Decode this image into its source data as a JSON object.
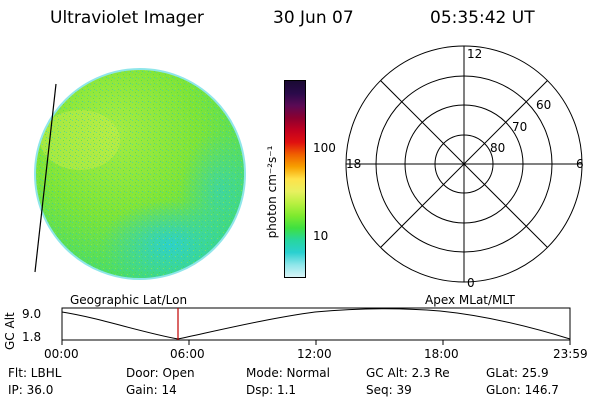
{
  "header": {
    "title": "Ultraviolet Imager",
    "date": "30 Jun 07",
    "time": "05:35:42 UT"
  },
  "colorbar": {
    "unit_label": "photon cm⁻²s⁻¹",
    "ticks": [
      "100",
      "10"
    ],
    "colors": [
      "#1a0a33",
      "#2a0a4a",
      "#5a0a55",
      "#8b0030",
      "#c00020",
      "#e01010",
      "#f06000",
      "#f7a000",
      "#ffe24a",
      "#e8f060",
      "#b8f040",
      "#7eea2e",
      "#3fe040",
      "#27d6a0",
      "#2ad0d0",
      "#8fe6ea",
      "#d8f4f6"
    ]
  },
  "polar": {
    "mlt_labels": {
      "top": "12",
      "left": "18",
      "right": "6",
      "bottom": "0"
    },
    "lat_labels": [
      "60",
      "70",
      "80"
    ]
  },
  "timeline": {
    "left_label": "Geographic Lat/Lon",
    "right_label": "Apex MLat/MLT",
    "yaxis_label": "GC Alt",
    "y_ticks": [
      "9.0",
      "1.8"
    ],
    "x_ticks": [
      "00:00",
      "06:00",
      "12:00",
      "18:00",
      "23:59"
    ]
  },
  "info": {
    "filter": "Flt: LBHL",
    "ip": "IP: 36.0",
    "door": "Door: Open",
    "gain": "Gain: 14",
    "mode": "Mode: Normal",
    "dsp": "Dsp:    1.1",
    "gc_alt": "GC Alt: 2.3 Re",
    "seq": "Seq: 39",
    "glat": "GLat:  25.9",
    "glon": "GLon: 146.7"
  },
  "colors": {
    "marker": "#c00000"
  }
}
